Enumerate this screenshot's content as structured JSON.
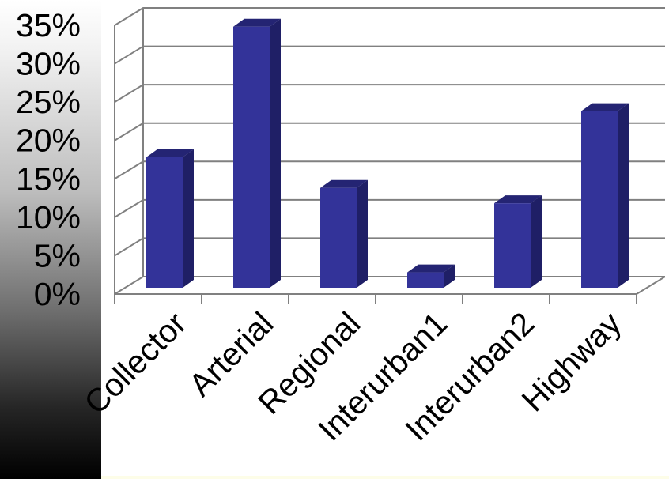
{
  "chart_data": {
    "type": "bar",
    "categories": [
      "Collector",
      "Arterial",
      "Regional",
      "Interurban1",
      "Interurban2",
      "Highway"
    ],
    "series": [
      {
        "values": [
          17,
          34,
          13,
          2,
          11,
          23
        ]
      }
    ],
    "ylim": [
      0,
      35
    ],
    "yticks": [
      "0%",
      "5%",
      "10%",
      "15%",
      "20%",
      "25%",
      "30%",
      "35%"
    ],
    "ytick_values": [
      0,
      5,
      10,
      15,
      20,
      25,
      30,
      35
    ],
    "grid": true,
    "legend": "none",
    "title": "",
    "xlabel": "",
    "ylabel": "",
    "colors": {
      "bar_front": "#333399",
      "bar_side": "#1f1f66",
      "bar_top": "#242473",
      "grid": "#808080"
    }
  }
}
